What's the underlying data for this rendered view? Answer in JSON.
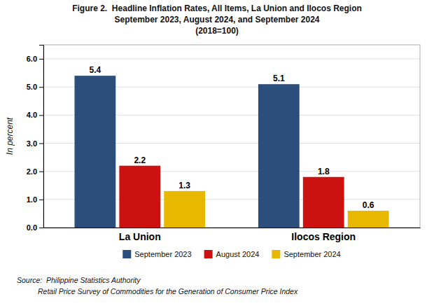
{
  "chart_data": {
    "type": "bar",
    "title": "Figure 2.  Headline Inflation Rates, All Items, La Union and Ilocos Region",
    "subtitle": [
      "September 2023, August 2024, and September 2024",
      "(2018=100)"
    ],
    "annotations": [
      "Source:  Philippine Statistics Authority",
      "Retail Price Survey of Commodities for the Generation of Consumer Price Index"
    ],
    "ylabel": "In percent",
    "categories": [
      "La Union",
      "Ilocos Region"
    ],
    "series": [
      {
        "name": "September 2023",
        "color": "#2B4F7A",
        "values": [
          5.4,
          5.1
        ]
      },
      {
        "name": "August 2024",
        "color": "#CC1111",
        "values": [
          2.2,
          1.8
        ]
      },
      {
        "name": "September 2024",
        "color": "#E8B800",
        "values": [
          1.3,
          0.6
        ]
      }
    ],
    "ylim": [
      0,
      6.5
    ],
    "yticks": [
      {
        "value": 0,
        "label": "0.0"
      },
      {
        "value": 1,
        "label": "1.0"
      },
      {
        "value": 2,
        "label": "2.0"
      },
      {
        "value": 3,
        "label": "3.0"
      },
      {
        "value": 4,
        "label": "4.0"
      },
      {
        "value": 5,
        "label": "5.0"
      },
      {
        "value": 6,
        "label": "6.0"
      }
    ],
    "grid": true,
    "legend": "bottom",
    "data_labels": true
  }
}
